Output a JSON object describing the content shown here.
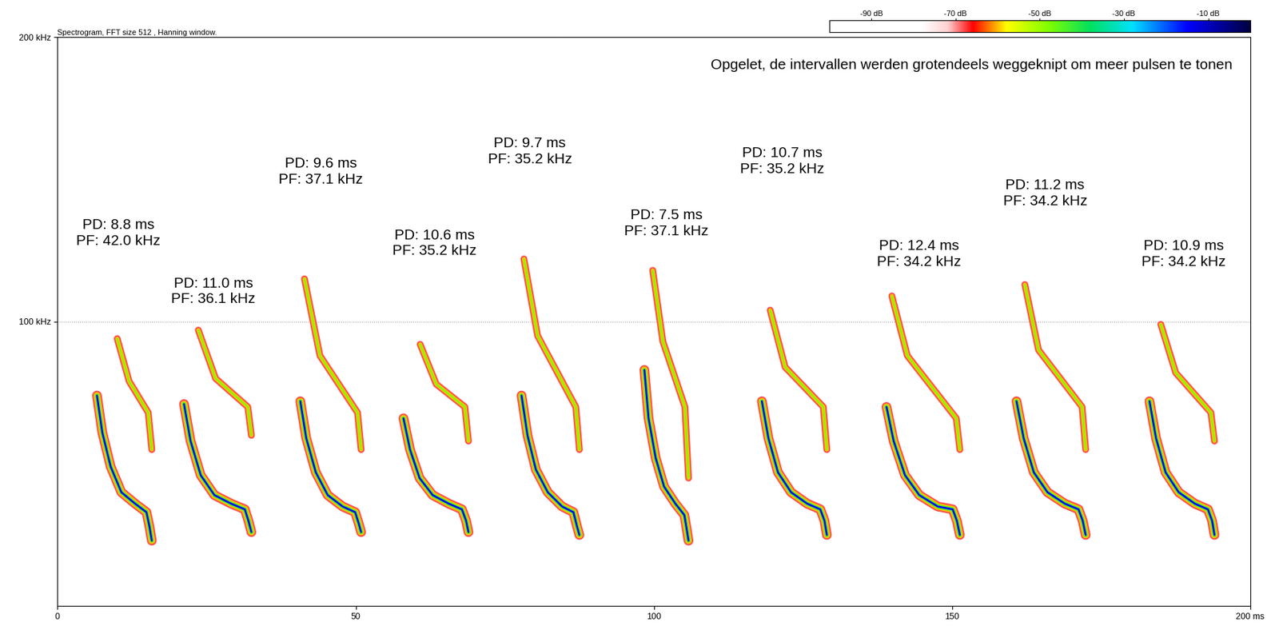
{
  "chart_data": {
    "type": "spectrogram",
    "title": "Spectrogram, FFT size 512 , Hanning window.",
    "note": "Opgelet, de intervallen werden grotendeels weggeknipt om meer pulsen te tonen",
    "xlim": [
      0,
      200
    ],
    "ylim": [
      0,
      200
    ],
    "xticks": [
      0,
      50,
      100,
      150,
      {
        "value": 200,
        "label": "200 ms"
      }
    ],
    "yticks": [
      {
        "value": 100,
        "label": "100 kHz"
      },
      {
        "value": 200,
        "label": "200 kHz"
      }
    ],
    "grid": true,
    "colorbar": {
      "range": [
        -100,
        0
      ],
      "ticks": [
        {
          "value": -90,
          "label": "-90 dB"
        },
        {
          "value": -70,
          "label": "-70 dB"
        },
        {
          "value": -50,
          "label": "-50 dB"
        },
        {
          "value": -30,
          "label": "-30 dB"
        },
        {
          "value": -10,
          "label": "-10 dB"
        }
      ]
    },
    "pulses": [
      {
        "label": [
          "PD: 8.8 ms",
          "PF: 42.0 kHz"
        ],
        "label_at": [
          10.2,
          131
        ],
        "fundamental": [
          [
            6.6,
            74
          ],
          [
            7.5,
            61
          ],
          [
            8.9,
            49
          ],
          [
            10.7,
            40
          ],
          [
            13.0,
            36
          ],
          [
            14.9,
            33
          ],
          [
            15.4,
            28
          ],
          [
            15.8,
            23
          ]
        ],
        "harmonic": [
          [
            10.0,
            94
          ],
          [
            12.0,
            79
          ],
          [
            15.2,
            68
          ],
          [
            15.8,
            55
          ]
        ]
      },
      {
        "label": [
          "PD: 11.0 ms",
          "PF: 36.1 kHz"
        ],
        "label_at": [
          26.1,
          110.6
        ],
        "fundamental": [
          [
            21.2,
            71
          ],
          [
            22.3,
            58
          ],
          [
            24.0,
            46
          ],
          [
            26.3,
            39
          ],
          [
            29.1,
            36
          ],
          [
            31.4,
            34
          ],
          [
            32.0,
            30
          ],
          [
            32.5,
            26
          ]
        ],
        "harmonic": [
          [
            23.6,
            97
          ],
          [
            26.5,
            80
          ],
          [
            31.9,
            70
          ],
          [
            32.5,
            60
          ]
        ]
      },
      {
        "label": [
          "PD: 9.6 ms",
          "PF: 37.1 kHz"
        ],
        "label_at": [
          44.1,
          152.7
        ],
        "fundamental": [
          [
            40.7,
            72
          ],
          [
            41.7,
            59
          ],
          [
            43.3,
            47
          ],
          [
            45.3,
            39
          ],
          [
            47.8,
            35
          ],
          [
            49.9,
            33
          ],
          [
            50.5,
            29
          ],
          [
            50.9,
            26
          ]
        ],
        "harmonic": [
          [
            41.4,
            115
          ],
          [
            44.0,
            88
          ],
          [
            50.3,
            68
          ],
          [
            50.9,
            55
          ]
        ]
      },
      {
        "label": [
          "PD: 10.6 ms",
          "PF: 35.2 kHz"
        ],
        "label_at": [
          63.2,
          127.5
        ],
        "fundamental": [
          [
            58.0,
            66
          ],
          [
            59.1,
            55
          ],
          [
            60.7,
            45
          ],
          [
            62.9,
            39
          ],
          [
            65.6,
            36
          ],
          [
            67.8,
            34
          ],
          [
            68.5,
            30
          ],
          [
            68.9,
            26
          ]
        ],
        "harmonic": [
          [
            60.8,
            92
          ],
          [
            63.5,
            78
          ],
          [
            68.3,
            70
          ],
          [
            68.9,
            58
          ]
        ]
      },
      {
        "label": [
          "PD: 9.7 ms",
          "PF: 35.2 kHz"
        ],
        "label_at": [
          79.2,
          159.7
        ],
        "fundamental": [
          [
            77.8,
            74
          ],
          [
            78.8,
            60
          ],
          [
            80.2,
            48
          ],
          [
            82.2,
            40
          ],
          [
            84.6,
            35
          ],
          [
            86.5,
            33
          ],
          [
            87.1,
            28
          ],
          [
            87.5,
            25
          ]
        ],
        "harmonic": [
          [
            78.2,
            122
          ],
          [
            80.5,
            95
          ],
          [
            86.9,
            70
          ],
          [
            87.5,
            55
          ]
        ]
      },
      {
        "label": [
          "PD: 7.5 ms",
          "PF: 37.1 kHz"
        ],
        "label_at": [
          102.1,
          134.5
        ],
        "fundamental": [
          [
            98.4,
            83
          ],
          [
            99.1,
            66
          ],
          [
            100.3,
            52
          ],
          [
            101.7,
            42
          ],
          [
            103.6,
            36
          ],
          [
            105.1,
            32
          ],
          [
            105.5,
            27
          ],
          [
            105.8,
            23
          ]
        ],
        "harmonic": [
          [
            99.8,
            118
          ],
          [
            101.5,
            93
          ],
          [
            105.2,
            70
          ],
          [
            105.8,
            45
          ]
        ]
      },
      {
        "label": [
          "PD: 10.7 ms",
          "PF: 35.2 kHz"
        ],
        "label_at": [
          121.5,
          156.3
        ],
        "fundamental": [
          [
            118.1,
            72
          ],
          [
            119.2,
            59
          ],
          [
            120.8,
            47
          ],
          [
            123.0,
            40
          ],
          [
            125.7,
            36
          ],
          [
            127.9,
            34
          ],
          [
            128.6,
            30
          ],
          [
            129.0,
            25
          ]
        ],
        "harmonic": [
          [
            119.5,
            104
          ],
          [
            122.0,
            84
          ],
          [
            128.4,
            70
          ],
          [
            129.0,
            55
          ]
        ]
      },
      {
        "label": [
          "PD: 12.4 ms",
          "PF: 34.2 kHz"
        ],
        "label_at": [
          144.4,
          123.8
        ],
        "fundamental": [
          [
            139.0,
            70
          ],
          [
            140.2,
            58
          ],
          [
            142.1,
            46
          ],
          [
            144.5,
            39
          ],
          [
            147.6,
            35
          ],
          [
            150.1,
            34
          ],
          [
            150.8,
            30
          ],
          [
            151.3,
            25
          ]
        ],
        "harmonic": [
          [
            139.9,
            109
          ],
          [
            142.5,
            88
          ],
          [
            150.7,
            66
          ],
          [
            151.3,
            55
          ]
        ]
      },
      {
        "label": [
          "PD: 11.2 ms",
          "PF: 34.2 kHz"
        ],
        "label_at": [
          165.6,
          145
        ],
        "fundamental": [
          [
            160.8,
            72
          ],
          [
            162.0,
            59
          ],
          [
            163.7,
            47
          ],
          [
            166.0,
            40
          ],
          [
            168.9,
            36
          ],
          [
            171.2,
            34
          ],
          [
            171.9,
            30
          ],
          [
            172.4,
            25
          ]
        ],
        "harmonic": [
          [
            162.2,
            113
          ],
          [
            164.5,
            90
          ],
          [
            171.8,
            70
          ],
          [
            172.4,
            55
          ]
        ]
      },
      {
        "label": [
          "PD: 10.9 ms",
          "PF: 34.2 kHz"
        ],
        "label_at": [
          188.8,
          123.8
        ],
        "fundamental": [
          [
            183.1,
            72
          ],
          [
            184.2,
            59
          ],
          [
            185.8,
            47
          ],
          [
            188.0,
            40
          ],
          [
            190.7,
            36
          ],
          [
            192.9,
            34
          ],
          [
            193.6,
            30
          ],
          [
            194.0,
            25
          ]
        ],
        "harmonic": [
          [
            185.0,
            99
          ],
          [
            187.5,
            82
          ],
          [
            193.4,
            68
          ],
          [
            194.0,
            58
          ]
        ]
      }
    ]
  }
}
